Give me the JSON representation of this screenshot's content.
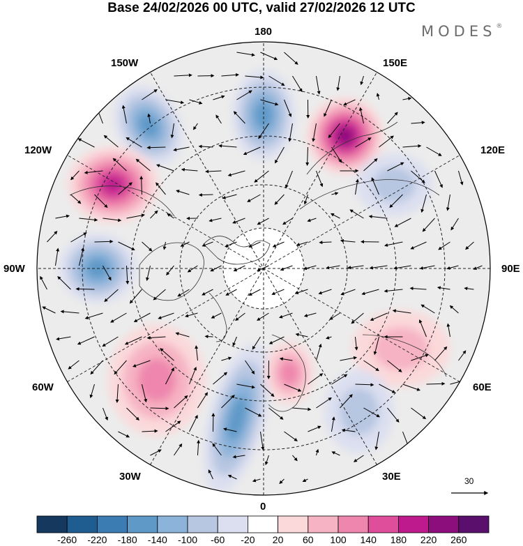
{
  "title": "Base 24/02/2026 00 UTC, valid 27/02/2026 12 UTC",
  "brand": "MODES",
  "brand_mark": "®",
  "longitude_labels": {
    "top": "180",
    "bottom": "0",
    "left": "90W",
    "right": "90E",
    "upper_left": "150W",
    "upper_right": "150E",
    "mid_left_upper": "120W",
    "mid_right_upper": "120E",
    "mid_left_lower": "60W",
    "mid_right_lower": "60E",
    "lower_left": "30W",
    "lower_right": "30E"
  },
  "vector_scale_label": "30",
  "colorbar": {
    "labels": [
      "-260",
      "-220",
      "-180",
      "-140",
      "-100",
      "-60",
      "-20",
      "20",
      "60",
      "100",
      "140",
      "180",
      "220",
      "260"
    ],
    "colors": [
      "#15385f",
      "#1f5c8f",
      "#3b7db3",
      "#5e99c8",
      "#8cb3da",
      "#b7c6e1",
      "#dcdff0",
      "#ffffff",
      "#fbd9da",
      "#f6b3c3",
      "#ef86ad",
      "#de4e9b",
      "#be1a8e",
      "#8c0e7d",
      "#5a0f6c"
    ]
  },
  "anomaly_centers": [
    {
      "name": "low-150w",
      "sign": "neg",
      "level": 3
    },
    {
      "name": "high-120w",
      "sign": "pos",
      "level": 4
    },
    {
      "name": "low-90w",
      "sign": "neg",
      "level": 3
    },
    {
      "name": "low-180",
      "sign": "neg",
      "level": 3
    },
    {
      "name": "high-150e",
      "sign": "pos",
      "level": 5
    },
    {
      "name": "low-120e",
      "sign": "neg",
      "level": 1
    },
    {
      "name": "high-60w",
      "sign": "pos",
      "level": 2
    },
    {
      "name": "low-atlantic",
      "sign": "neg",
      "level": 3
    },
    {
      "name": "high-europe",
      "sign": "pos",
      "level": 2
    },
    {
      "name": "high-60e",
      "sign": "pos",
      "level": 1
    },
    {
      "name": "low-30e",
      "sign": "neg",
      "level": 1
    }
  ]
}
